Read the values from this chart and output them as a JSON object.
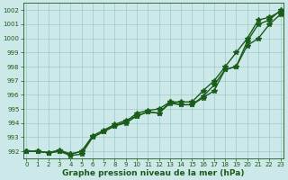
{
  "xlabel": "Graphe pression niveau de la mer (hPa)",
  "ylim": [
    991.5,
    1002.5
  ],
  "xlim": [
    -0.3,
    23.3
  ],
  "yticks": [
    992,
    993,
    994,
    995,
    996,
    997,
    998,
    999,
    1000,
    1001,
    1002
  ],
  "xticks": [
    0,
    1,
    2,
    3,
    4,
    5,
    6,
    7,
    8,
    9,
    10,
    11,
    12,
    13,
    14,
    15,
    16,
    17,
    18,
    19,
    20,
    21,
    22,
    23
  ],
  "bg_color": "#cce8e8",
  "grid_color": "#99cccc",
  "line_color": "#1a5c1a",
  "line1": [
    992.0,
    992.0,
    991.9,
    992.0,
    991.8,
    992.0,
    993.1,
    993.5,
    993.9,
    994.2,
    994.5,
    994.8,
    994.7,
    995.5,
    995.3,
    995.3,
    995.8,
    996.3,
    997.8,
    998.0,
    999.8,
    1001.0,
    1001.3,
    1002.0
  ],
  "line2": [
    992.0,
    992.0,
    991.9,
    992.0,
    991.7,
    991.8,
    993.0,
    993.4,
    993.8,
    994.0,
    994.5,
    994.8,
    994.7,
    995.4,
    995.3,
    995.3,
    995.9,
    996.7,
    997.8,
    998.0,
    999.5,
    1000.0,
    1001.0,
    1001.7
  ],
  "line3": [
    992.0,
    992.0,
    991.9,
    992.1,
    991.8,
    992.0,
    993.0,
    993.4,
    993.8,
    994.1,
    994.7,
    994.9,
    995.0,
    995.5,
    995.5,
    995.5,
    996.3,
    997.0,
    998.0,
    999.0,
    1000.0,
    1001.3,
    1001.5,
    1001.9
  ],
  "marker": "*",
  "markersize": 4.0,
  "linewidth": 1.0,
  "tick_fontsize": 5.0,
  "label_fontsize": 6.5,
  "label_fontweight": "bold"
}
